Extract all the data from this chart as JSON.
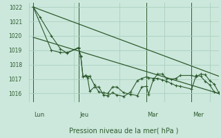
{
  "bg_color": "#cce8dc",
  "grid_color": "#aacfbf",
  "line_color": "#2d5a2d",
  "ylim": [
    1015.4,
    1022.3
  ],
  "xlim": [
    0,
    84
  ],
  "yticks": [
    1016,
    1017,
    1018,
    1019,
    1020,
    1021,
    1022
  ],
  "xlabel": "Pression niveau de la mer( hPa )",
  "day_labels": [
    "Lun",
    "Jeu",
    "Mar",
    "Mer"
  ],
  "day_positions": [
    2,
    22,
    52,
    72
  ],
  "series1_x": [
    2,
    5,
    10,
    14,
    17,
    22,
    23,
    24,
    25,
    26,
    27,
    29,
    31,
    33,
    35,
    37,
    39,
    42,
    45,
    48,
    50,
    52,
    53,
    55,
    57,
    59,
    61,
    63,
    65,
    67,
    72,
    74,
    76,
    78,
    80,
    82,
    84
  ],
  "series1_y": [
    1022,
    1021.3,
    1020.0,
    1019.1,
    1018.8,
    1019.2,
    1018.6,
    1017.15,
    1017.2,
    1017.15,
    1017.2,
    1016.6,
    1016.1,
    1016.05,
    1016.0,
    1016.45,
    1016.45,
    1016.05,
    1015.95,
    1015.85,
    1016.45,
    1016.5,
    1015.95,
    1016.95,
    1017.35,
    1017.35,
    1017.05,
    1017.0,
    1017.05,
    1017.25,
    1017.25,
    1017.15,
    1017.35,
    1017.3,
    1016.9,
    1016.65,
    1016.05
  ],
  "series2_x": [
    2,
    10,
    14,
    17,
    22,
    23,
    24,
    25,
    26,
    27,
    29,
    31,
    33,
    35,
    37,
    39,
    42,
    45,
    48,
    50,
    52,
    53,
    55,
    57,
    59,
    61,
    63,
    65,
    67,
    72,
    74,
    76,
    78,
    80,
    82,
    84
  ],
  "series2_y": [
    1022,
    1019.0,
    1018.85,
    1018.85,
    1019.15,
    1018.55,
    1017.15,
    1017.25,
    1017.1,
    1016.15,
    1016.45,
    1016.45,
    1015.9,
    1015.85,
    1016.05,
    1015.9,
    1015.8,
    1016.1,
    1016.9,
    1017.05,
    1017.15,
    1017.1,
    1017.05,
    1017.05,
    1016.95,
    1016.85,
    1016.7,
    1016.55,
    1016.5,
    1016.3,
    1017.25,
    1017.2,
    1016.85,
    1016.6,
    1016.1,
    1016.0
  ],
  "trend1_x": [
    2,
    84
  ],
  "trend1_y": [
    1022.0,
    1017.2
  ],
  "trend2_x": [
    2,
    84
  ],
  "trend2_y": [
    1019.9,
    1016.0
  ]
}
